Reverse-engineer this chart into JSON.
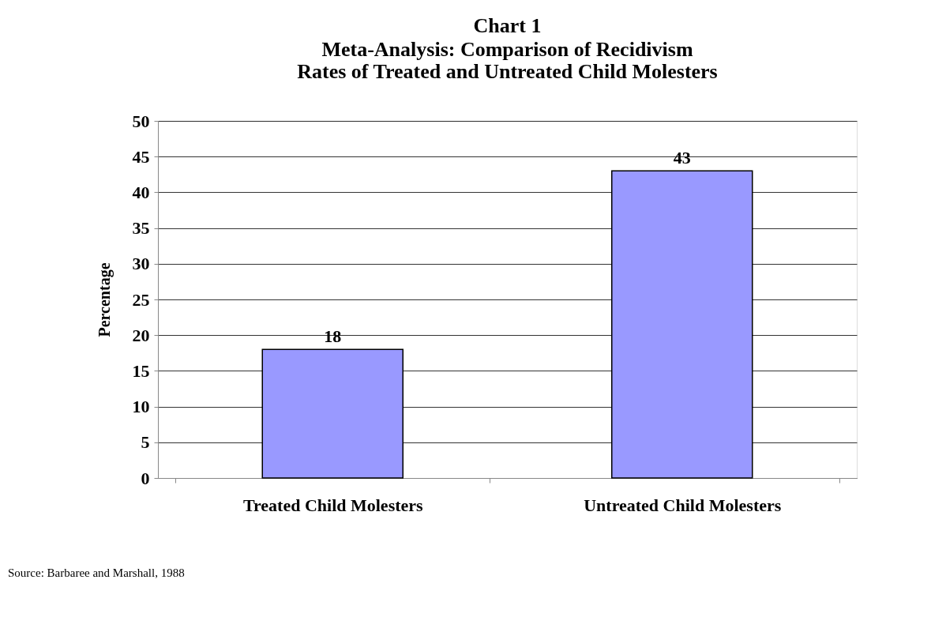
{
  "chart_data": {
    "type": "bar",
    "title": "Chart 1",
    "subtitle": "Meta-Analysis:  Comparison of Recidivism\nRates of Treated and Untreated Child Molesters",
    "ylabel": "Percentage",
    "categories": [
      "Treated Child Molesters",
      "Untreated Child Molesters"
    ],
    "values": [
      18,
      43
    ],
    "color": "#9999ff",
    "ylim": [
      0,
      50
    ],
    "yticks": [
      0,
      5,
      10,
      15,
      20,
      25,
      30,
      35,
      40,
      45,
      50
    ],
    "grid": "y",
    "data_labels": true,
    "annotations": [
      "Source:  Barbaree and Marshall, 1988"
    ]
  }
}
